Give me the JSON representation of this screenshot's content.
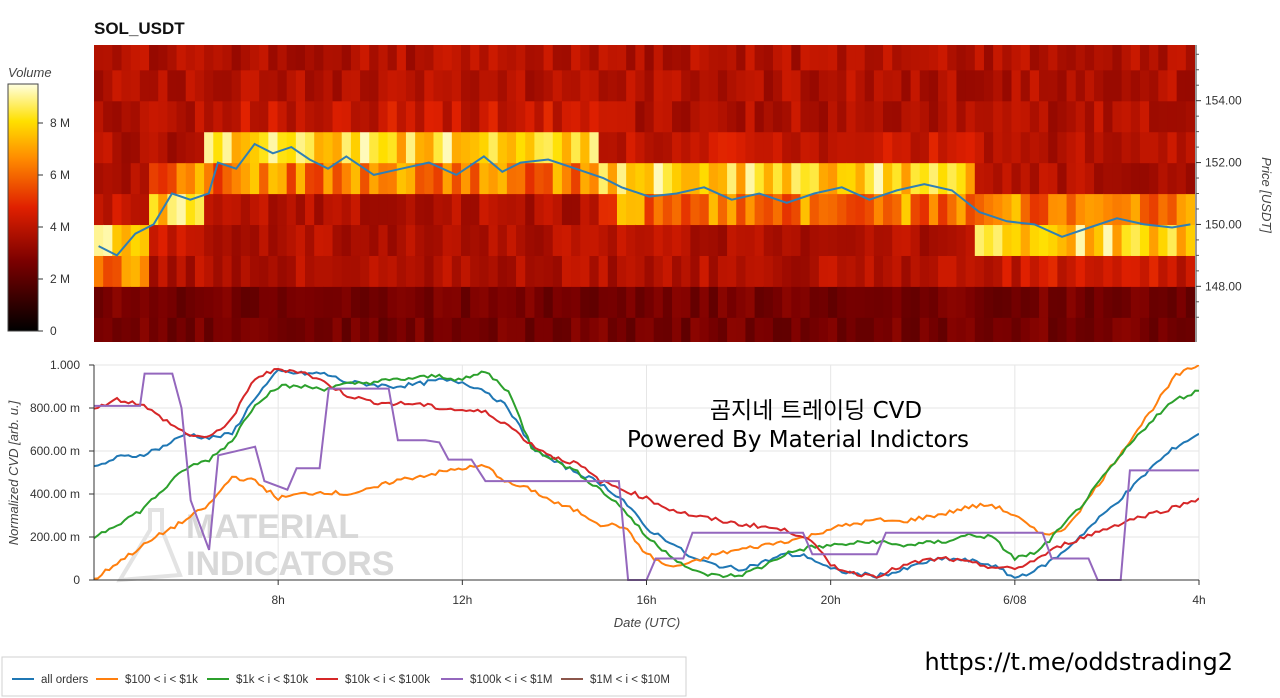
{
  "chart_data": [
    {
      "type": "heatmap",
      "title": "SOL_USDT",
      "ylabel": "Price [USDT]",
      "colorbar_label": "Volume",
      "colorbar_ticks": [
        "0",
        "2 M",
        "4 M",
        "6 M",
        "8 M"
      ],
      "colorbar_range": [
        0,
        9500000
      ],
      "y_ticks": [
        "148.00",
        "150.00",
        "152.00",
        "154.00"
      ],
      "ylim": [
        146.2,
        155.8
      ],
      "price_bins": [
        146.5,
        147.5,
        148.5,
        149.5,
        150.5,
        151.5,
        152.5,
        153.5,
        154.5,
        155.5
      ],
      "columns": 120,
      "high_volume_bands": [
        {
          "from_col": 0,
          "to_col": 6,
          "prices": [
            149.5,
            148.5
          ]
        },
        {
          "from_col": 6,
          "to_col": 12,
          "prices": [
            150.5,
            151.5
          ]
        },
        {
          "from_col": 12,
          "to_col": 55,
          "prices": [
            152.5,
            151.5
          ]
        },
        {
          "from_col": 55,
          "to_col": 96,
          "prices": [
            151.5,
            150.5
          ]
        },
        {
          "from_col": 96,
          "to_col": 120,
          "prices": [
            149.5,
            150.5
          ]
        }
      ],
      "price_line": {
        "color": "#2f7fb5",
        "points": [
          {
            "col": 0,
            "price": 149.3
          },
          {
            "col": 2,
            "price": 149.0
          },
          {
            "col": 4,
            "price": 149.7
          },
          {
            "col": 6,
            "price": 150.0
          },
          {
            "col": 8,
            "price": 151.0
          },
          {
            "col": 10,
            "price": 150.8
          },
          {
            "col": 12,
            "price": 151.0
          },
          {
            "col": 13,
            "price": 152.0
          },
          {
            "col": 15,
            "price": 151.8
          },
          {
            "col": 17,
            "price": 152.6
          },
          {
            "col": 19,
            "price": 152.3
          },
          {
            "col": 21,
            "price": 152.5
          },
          {
            "col": 23,
            "price": 152.1
          },
          {
            "col": 25,
            "price": 151.8
          },
          {
            "col": 27,
            "price": 152.2
          },
          {
            "col": 30,
            "price": 151.6
          },
          {
            "col": 33,
            "price": 151.8
          },
          {
            "col": 36,
            "price": 152.0
          },
          {
            "col": 39,
            "price": 151.6
          },
          {
            "col": 42,
            "price": 152.2
          },
          {
            "col": 44,
            "price": 151.7
          },
          {
            "col": 46,
            "price": 152.0
          },
          {
            "col": 49,
            "price": 152.1
          },
          {
            "col": 52,
            "price": 151.8
          },
          {
            "col": 55,
            "price": 151.5
          },
          {
            "col": 57,
            "price": 151.2
          },
          {
            "col": 60,
            "price": 150.9
          },
          {
            "col": 63,
            "price": 151.0
          },
          {
            "col": 66,
            "price": 151.2
          },
          {
            "col": 69,
            "price": 150.8
          },
          {
            "col": 72,
            "price": 151.0
          },
          {
            "col": 75,
            "price": 150.7
          },
          {
            "col": 78,
            "price": 151.0
          },
          {
            "col": 81,
            "price": 151.2
          },
          {
            "col": 84,
            "price": 150.8
          },
          {
            "col": 87,
            "price": 151.1
          },
          {
            "col": 90,
            "price": 151.3
          },
          {
            "col": 93,
            "price": 151.1
          },
          {
            "col": 96,
            "price": 150.4
          },
          {
            "col": 99,
            "price": 150.1
          },
          {
            "col": 102,
            "price": 150.0
          },
          {
            "col": 105,
            "price": 149.6
          },
          {
            "col": 108,
            "price": 149.9
          },
          {
            "col": 111,
            "price": 150.2
          },
          {
            "col": 114,
            "price": 150.0
          },
          {
            "col": 117,
            "price": 149.9
          },
          {
            "col": 119,
            "price": 150.0
          }
        ]
      }
    },
    {
      "type": "line",
      "xlabel": "Date (UTC)",
      "ylabel": "Normalized CVD [arb. u.]",
      "x_ticks": [
        "8h",
        "12h",
        "16h",
        "20h",
        "6/08",
        "4h"
      ],
      "x_tick_hours": [
        8,
        12,
        16,
        20,
        24,
        28
      ],
      "xlim": [
        4,
        28
      ],
      "y_ticks": [
        "0",
        "200.00 m",
        "400.00 m",
        "600.00 m",
        "800.00 m",
        "1.000"
      ],
      "ylim": [
        0,
        1
      ],
      "annotation_lines": [
        "곰지네 트레이딩 CVD",
        "Powered By Material Indictors"
      ],
      "series": [
        {
          "name": "all orders",
          "color": "#1f77b4",
          "x": [
            4,
            4.5,
            5,
            5.5,
            6,
            6.5,
            7,
            7.5,
            8,
            8.5,
            9,
            9.5,
            10,
            10.5,
            11,
            11.5,
            12,
            12.5,
            13,
            13.5,
            14,
            14.5,
            15,
            15.5,
            16,
            16.5,
            17,
            17.5,
            18,
            18.5,
            19,
            19.5,
            20,
            20.5,
            21,
            21.5,
            22,
            22.5,
            23,
            23.5,
            24,
            24.5,
            25,
            25.5,
            26,
            26.5,
            27,
            27.5,
            28
          ],
          "y": [
            0.52,
            0.57,
            0.58,
            0.62,
            0.68,
            0.66,
            0.68,
            0.85,
            0.97,
            0.96,
            0.96,
            0.92,
            0.91,
            0.9,
            0.91,
            0.93,
            0.92,
            0.88,
            0.8,
            0.62,
            0.55,
            0.5,
            0.45,
            0.37,
            0.24,
            0.18,
            0.1,
            0.07,
            0.05,
            0.08,
            0.12,
            0.11,
            0.05,
            0.03,
            0.02,
            0.04,
            0.08,
            0.1,
            0.09,
            0.07,
            0.01,
            0.05,
            0.12,
            0.22,
            0.32,
            0.42,
            0.53,
            0.62,
            0.68
          ]
        },
        {
          "name": "$100 < i < $1k",
          "color": "#ff7f0e",
          "x": [
            4,
            4.5,
            5,
            5.5,
            6,
            6.5,
            7,
            7.5,
            8,
            8.5,
            9,
            9.5,
            10,
            10.5,
            11,
            11.5,
            12,
            12.5,
            13,
            13.5,
            14,
            14.5,
            15,
            15.5,
            16,
            16.5,
            17,
            17.5,
            18,
            18.5,
            19,
            19.5,
            20,
            20.5,
            21,
            21.5,
            22,
            22.5,
            23,
            23.5,
            24,
            24.5,
            25,
            25.5,
            26,
            26.5,
            27,
            27.5,
            28
          ],
          "y": [
            0.0,
            0.08,
            0.15,
            0.22,
            0.28,
            0.35,
            0.48,
            0.46,
            0.38,
            0.4,
            0.41,
            0.4,
            0.42,
            0.46,
            0.48,
            0.5,
            0.52,
            0.53,
            0.45,
            0.42,
            0.36,
            0.32,
            0.26,
            0.25,
            0.12,
            0.06,
            0.08,
            0.12,
            0.14,
            0.16,
            0.18,
            0.2,
            0.24,
            0.26,
            0.28,
            0.27,
            0.29,
            0.31,
            0.34,
            0.35,
            0.3,
            0.22,
            0.22,
            0.35,
            0.5,
            0.65,
            0.8,
            0.95,
            1.0
          ]
        },
        {
          "name": "$1k < i < $10k",
          "color": "#2ca02c",
          "x": [
            4,
            4.5,
            5,
            5.5,
            6,
            6.5,
            7,
            7.5,
            8,
            8.5,
            9,
            9.5,
            10,
            10.5,
            11,
            11.5,
            12,
            12.5,
            13,
            13.5,
            14,
            14.5,
            15,
            15.5,
            16,
            16.5,
            17,
            17.5,
            18,
            18.5,
            19,
            19.5,
            20,
            20.5,
            21,
            21.5,
            22,
            22.5,
            23,
            23.5,
            24,
            24.5,
            25,
            25.5,
            26,
            26.5,
            27,
            27.5,
            28
          ],
          "y": [
            0.2,
            0.26,
            0.32,
            0.42,
            0.52,
            0.56,
            0.65,
            0.82,
            0.9,
            0.9,
            0.89,
            0.91,
            0.92,
            0.93,
            0.94,
            0.95,
            0.93,
            0.97,
            0.88,
            0.62,
            0.56,
            0.5,
            0.42,
            0.33,
            0.2,
            0.12,
            0.04,
            0.02,
            0.02,
            0.06,
            0.12,
            0.15,
            0.16,
            0.17,
            0.18,
            0.16,
            0.17,
            0.18,
            0.21,
            0.2,
            0.1,
            0.13,
            0.24,
            0.36,
            0.5,
            0.63,
            0.75,
            0.84,
            0.88
          ]
        },
        {
          "name": "$10k < i < $100k",
          "color": "#d62728",
          "x": [
            4,
            4.5,
            5,
            5.5,
            6,
            6.5,
            7,
            7.5,
            8,
            8.5,
            9,
            9.5,
            10,
            10.5,
            11,
            11.5,
            12,
            12.5,
            13,
            13.5,
            14,
            14.5,
            15,
            15.5,
            16,
            16.5,
            17,
            17.5,
            18,
            18.5,
            19,
            19.5,
            20,
            20.5,
            21,
            21.5,
            22,
            22.5,
            23,
            23.5,
            24,
            24.5,
            25,
            25.5,
            26,
            26.5,
            27,
            27.5,
            28
          ],
          "y": [
            0.8,
            0.84,
            0.82,
            0.75,
            0.68,
            0.66,
            0.75,
            0.94,
            0.98,
            0.97,
            0.92,
            0.86,
            0.83,
            0.82,
            0.82,
            0.8,
            0.79,
            0.78,
            0.72,
            0.63,
            0.57,
            0.54,
            0.46,
            0.42,
            0.38,
            0.33,
            0.3,
            0.28,
            0.26,
            0.25,
            0.23,
            0.2,
            0.07,
            0.03,
            0.02,
            0.06,
            0.09,
            0.1,
            0.08,
            0.06,
            0.05,
            0.1,
            0.16,
            0.2,
            0.24,
            0.28,
            0.31,
            0.34,
            0.38
          ]
        },
        {
          "name": "$100k < i < $1M",
          "color": "#9467bd",
          "x": [
            4,
            5,
            5.1,
            5.7,
            5.9,
            6.1,
            6.5,
            6.7,
            7.5,
            7.7,
            8.2,
            8.4,
            8.9,
            9.1,
            10.4,
            10.6,
            11.2,
            11.5,
            11.7,
            12.2,
            12.5,
            15.4,
            15.6,
            16.0,
            16.2,
            16.8,
            17.0,
            19.4,
            19.6,
            20.5,
            21.0,
            21.2,
            24.6,
            24.8,
            25.6,
            25.8,
            26.3,
            26.5,
            28
          ],
          "y": [
            0.81,
            0.81,
            0.96,
            0.96,
            0.8,
            0.37,
            0.14,
            0.58,
            0.62,
            0.46,
            0.42,
            0.52,
            0.52,
            0.89,
            0.89,
            0.65,
            0.65,
            0.64,
            0.56,
            0.56,
            0.46,
            0.46,
            0.0,
            0.0,
            0.1,
            0.1,
            0.22,
            0.22,
            0.12,
            0.12,
            0.12,
            0.22,
            0.22,
            0.1,
            0.1,
            0.0,
            0.0,
            0.51,
            0.51
          ]
        },
        {
          "name": "$1M < i < $10M",
          "color": "#8c564b",
          "x": [],
          "y": []
        }
      ]
    }
  ],
  "legend": {
    "items": [
      "all orders",
      "$100 < i < $1k",
      "$1k < i < $10k",
      "$10k < i < $100k",
      "$100k < i < $1M",
      "$1M < i < $10M"
    ],
    "colors": [
      "#1f77b4",
      "#ff7f0e",
      "#2ca02c",
      "#d62728",
      "#9467bd",
      "#8c564b"
    ]
  },
  "watermark": {
    "line1": "MATERIAL",
    "line2": "INDICATORS"
  },
  "footer_url": "https://t.me/oddstrading2"
}
